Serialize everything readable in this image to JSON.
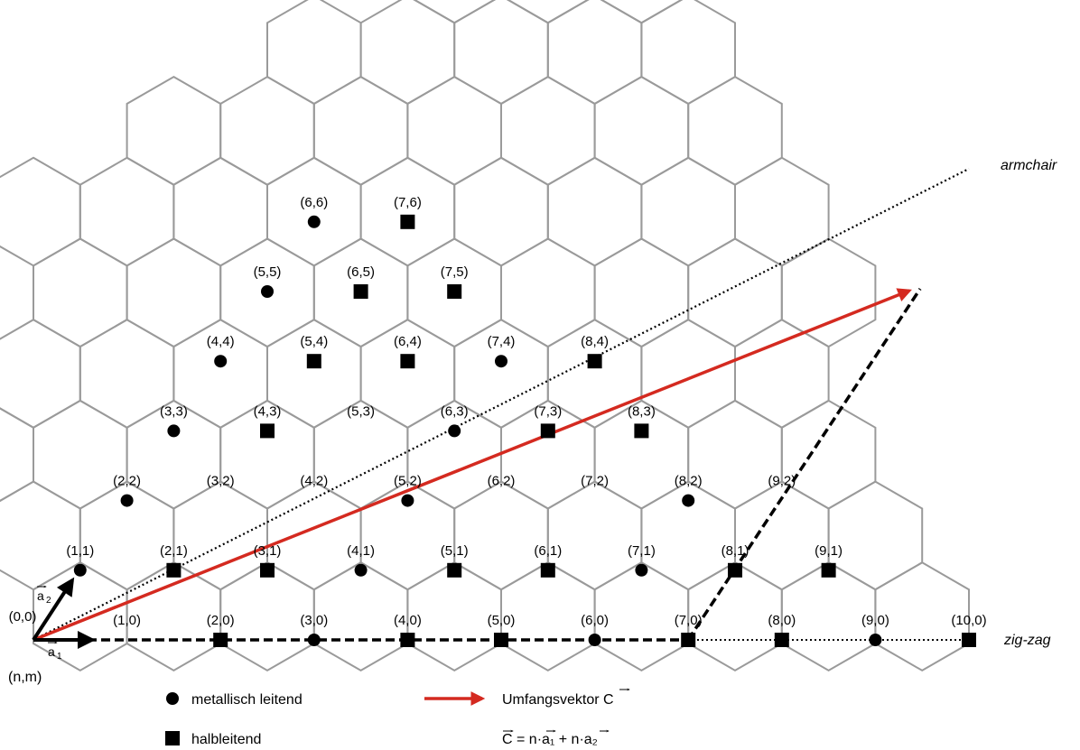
{
  "nodes": [
    {
      "label": "(0,0)",
      "type": "origin"
    },
    {
      "label": "(1,0)",
      "type": "none"
    },
    {
      "label": "(2,0)",
      "type": "semiconducting"
    },
    {
      "label": "(3,0)",
      "type": "metallic"
    },
    {
      "label": "(4,0)",
      "type": "semiconducting"
    },
    {
      "label": "(5,0)",
      "type": "semiconducting"
    },
    {
      "label": "(6,0)",
      "type": "metallic"
    },
    {
      "label": "(7,0)",
      "type": "semiconducting"
    },
    {
      "label": "(8,0)",
      "type": "semiconducting"
    },
    {
      "label": "(9,0)",
      "type": "metallic"
    },
    {
      "label": "(10,0)",
      "type": "semiconducting"
    },
    {
      "label": "(1,1)",
      "type": "metallic"
    },
    {
      "label": "(2,1)",
      "type": "semiconducting"
    },
    {
      "label": "(3,1)",
      "type": "semiconducting"
    },
    {
      "label": "(4,1)",
      "type": "metallic"
    },
    {
      "label": "(5,1)",
      "type": "semiconducting"
    },
    {
      "label": "(6,1)",
      "type": "semiconducting"
    },
    {
      "label": "(7,1)",
      "type": "metallic"
    },
    {
      "label": "(8,1)",
      "type": "semiconducting"
    },
    {
      "label": "(9,1)",
      "type": "semiconducting"
    },
    {
      "label": "(2,2)",
      "type": "metallic"
    },
    {
      "label": "(3,2)",
      "type": "none"
    },
    {
      "label": "(4,2)",
      "type": "none"
    },
    {
      "label": "(5,2)",
      "type": "metallic"
    },
    {
      "label": "(6,2)",
      "type": "none"
    },
    {
      "label": "(7,2)",
      "type": "none"
    },
    {
      "label": "(8,2)",
      "type": "metallic"
    },
    {
      "label": "(9,2)",
      "type": "none"
    },
    {
      "label": "(3,3)",
      "type": "metallic"
    },
    {
      "label": "(4,3)",
      "type": "semiconducting"
    },
    {
      "label": "(5,3)",
      "type": "none"
    },
    {
      "label": "(6,3)",
      "type": "metallic"
    },
    {
      "label": "(7,3)",
      "type": "semiconducting"
    },
    {
      "label": "(8,3)",
      "type": "semiconducting"
    },
    {
      "label": "(4,4)",
      "type": "metallic"
    },
    {
      "label": "(5,4)",
      "type": "semiconducting"
    },
    {
      "label": "(6,4)",
      "type": "semiconducting"
    },
    {
      "label": "(7,4)",
      "type": "metallic"
    },
    {
      "label": "(8,4)",
      "type": "semiconducting"
    },
    {
      "label": "(5,5)",
      "type": "metallic"
    },
    {
      "label": "(6,5)",
      "type": "semiconducting"
    },
    {
      "label": "(7,5)",
      "type": "semiconducting"
    },
    {
      "label": "(6,6)",
      "type": "metallic"
    },
    {
      "label": "(7,6)",
      "type": "semiconducting"
    }
  ],
  "labels": {
    "armchair": "armchair",
    "zigzag": "zig-zag",
    "nm": "(n,m)",
    "a1": "a",
    "a1_sub": "1",
    "a2": "a",
    "a2_sub": "2"
  },
  "legend": {
    "metallic": "metallisch leitend",
    "semiconducting": "halbleitend",
    "chiral_vector": "Umfangsvektor C",
    "formula": "C = n·a₁ + n·a₂"
  },
  "colors": {
    "hex_stroke": "#9a9a9a",
    "chiral_vector": "#d42a20",
    "marker": "#000000"
  }
}
